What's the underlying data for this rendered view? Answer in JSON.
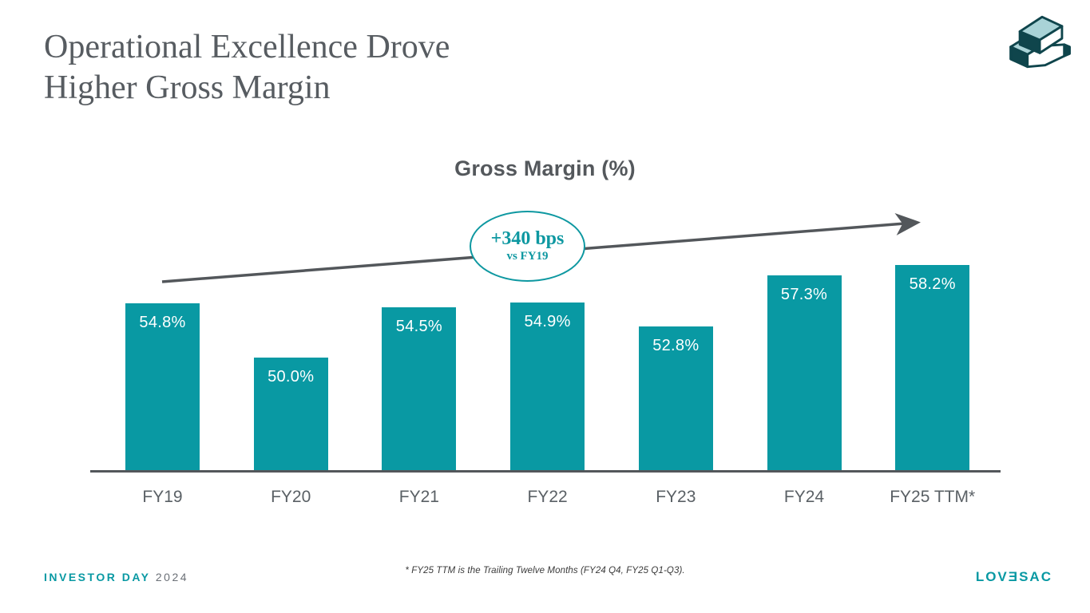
{
  "slide": {
    "title_line1": "Operational Excellence Drove",
    "title_line2": "Higher Gross Margin",
    "footer": {
      "event_label": "INVESTOR DAY",
      "event_year": "2024",
      "footnote": "* FY25 TTM is the Trailing Twelve Months (FY24 Q4, FY25 Q1-Q3).",
      "brand_wordmark": "LOVƎSAC"
    }
  },
  "chart_data": {
    "type": "bar",
    "title": "Gross Margin (%)",
    "categories": [
      "FY19",
      "FY20",
      "FY21",
      "FY22",
      "FY23",
      "FY24",
      "FY25 TTM*"
    ],
    "values": [
      54.8,
      50.0,
      54.5,
      54.9,
      52.8,
      57.3,
      58.2
    ],
    "value_label_format": "percent_one_decimal",
    "ylim": [
      40,
      60
    ],
    "xlabel": "",
    "ylabel": "",
    "grid": false,
    "legend": "none",
    "bar_color": "#0999A3",
    "value_label_color": "#FFFFFF",
    "annotation": {
      "line1": "+340 bps",
      "line2": "vs FY19"
    },
    "trend_arrow": {
      "present": true,
      "direction": "up-right",
      "color": "#53575B"
    }
  },
  "colors": {
    "accent_teal": "#0999A3",
    "dark_teal": "#0F454C",
    "light_teal": "#A9D3D7",
    "title_gray": "#575C61",
    "axis_gray": "#53575B",
    "label_gray": "#5A6065"
  }
}
